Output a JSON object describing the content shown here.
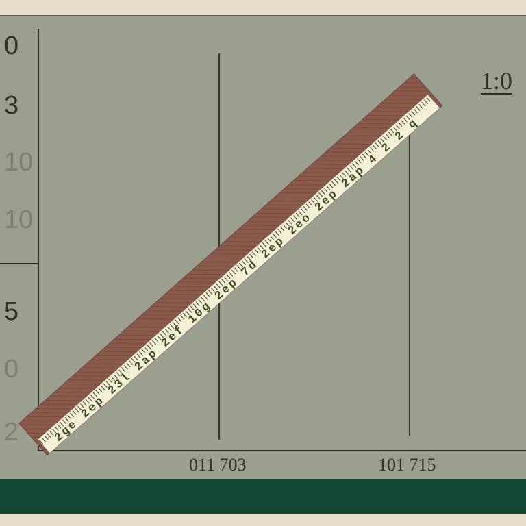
{
  "colors": {
    "board": "#9b9f8f",
    "strip": "#134734",
    "frame": "#e8dccb",
    "ink": "#2f3128",
    "ruler_wood": "#8a5a4d",
    "ruler_face": "#f4f0d6"
  },
  "left_labels": [
    "0",
    "3",
    "10",
    "10",
    "5",
    "0",
    "2"
  ],
  "corner_label": "1:0",
  "axis_labels": [
    "011 703",
    "101 715"
  ],
  "ruler": {
    "markings": "2ge 2ep 23l 2ap 2ef 10g 2ep 7d 2ep 2eo 2ep 2ap 4 2 2 q"
  }
}
